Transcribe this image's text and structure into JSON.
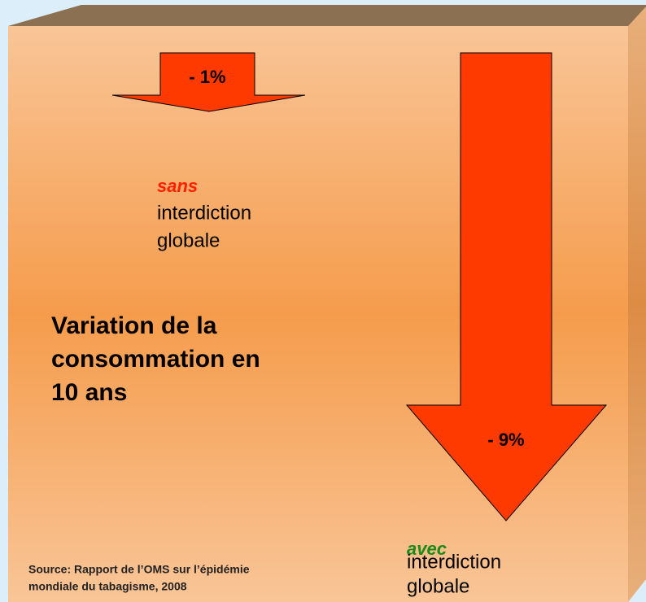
{
  "top_arrow": {
    "label": "- 1%"
  },
  "bottom_arrow": {
    "label": "- 9%"
  },
  "without": {
    "emphasis": "sans",
    "lines": [
      "interdiction",
      "globale"
    ]
  },
  "with": {
    "emphasis": "avec",
    "lines": [
      "interdiction",
      "globale"
    ]
  },
  "heading": [
    "Variation de la",
    "consommation en",
    "10 ans"
  ],
  "source": [
    "Source: Rapport de l’OMS sur l’épidémie",
    "mondiale du tabagisme, 2008"
  ]
}
